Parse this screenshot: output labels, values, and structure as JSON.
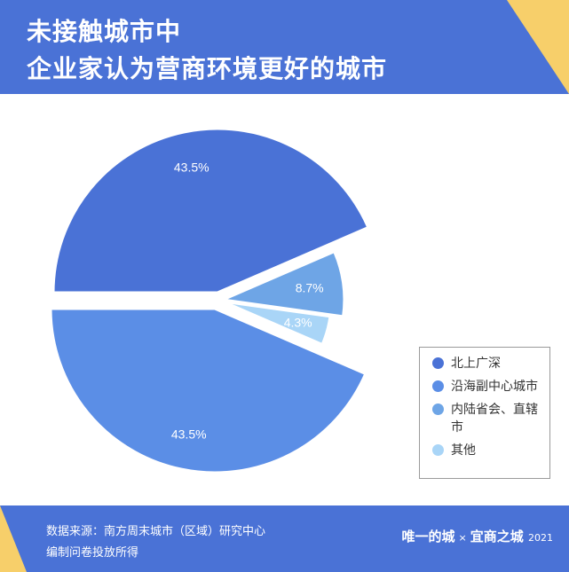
{
  "header": {
    "title_line1": "未接触城市中",
    "title_line2": "企业家认为营商环境更好的城市"
  },
  "chart_data": {
    "type": "pie",
    "categories": [
      "北上广深",
      "沿海副中心城市",
      "内陆省会、直辖市",
      "其他"
    ],
    "values": [
      43.5,
      43.5,
      8.7,
      4.3
    ],
    "value_labels": [
      "43.5%",
      "43.5%",
      "8.7%",
      "4.3%"
    ],
    "colors": [
      "#4a72d6",
      "#5b8ee6",
      "#6ea5e6",
      "#a9d5f7"
    ],
    "legend_position": "right",
    "exploded": true
  },
  "legend": {
    "items": [
      {
        "text": "北上广深",
        "color": "#4a72d6"
      },
      {
        "text": "沿海副中心城市",
        "color": "#5b8ee6"
      },
      {
        "text": "内陆省会、直辖市",
        "color": "#6ea5e6"
      },
      {
        "text": "其他",
        "color": "#a9d5f7"
      }
    ]
  },
  "footer": {
    "source_line1": "数据来源：南方周末城市（区域）研究中心",
    "source_line2": "编制问卷投放所得",
    "brand_left": "唯一的城",
    "brand_sep": "×",
    "brand_right": "宜商之城",
    "brand_year": "2021"
  },
  "colors": {
    "header_bg": "#4a72d6",
    "accent_yellow": "#f7cf6a"
  }
}
